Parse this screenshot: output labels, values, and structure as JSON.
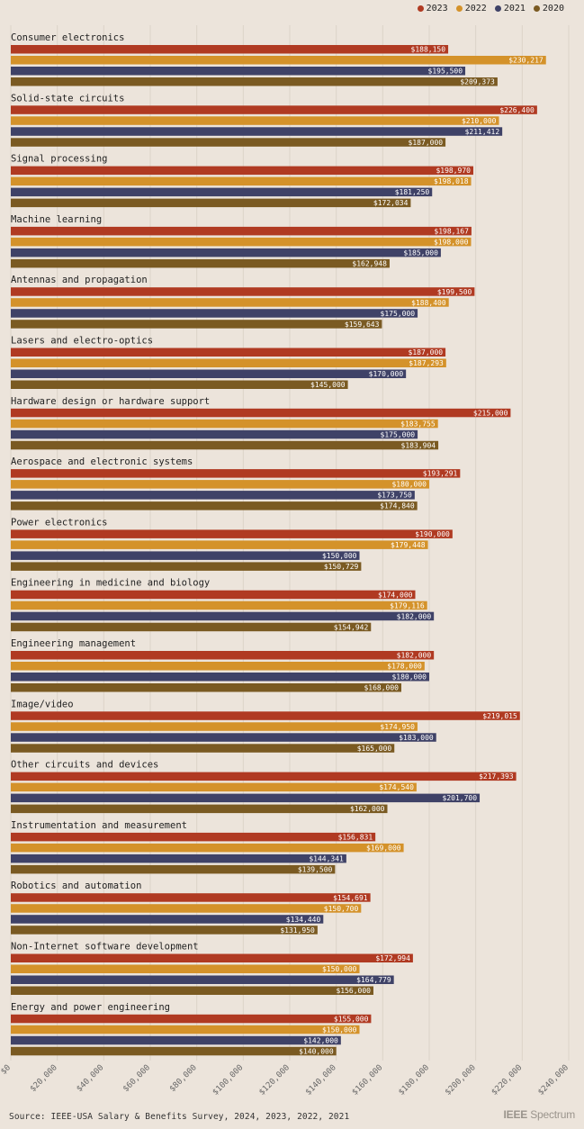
{
  "legend": [
    {
      "label": "2023",
      "color": "#b03a22"
    },
    {
      "label": "2022",
      "color": "#d4922a"
    },
    {
      "label": "2021",
      "color": "#3f4267"
    },
    {
      "label": "2020",
      "color": "#7a5a22"
    }
  ],
  "source": "Source: IEEE-USA Salary & Benefits Survey, 2024, 2023, 2022, 2021",
  "logo": {
    "prefix": "IEEE",
    "suffix": "Spectrum"
  },
  "chart_data": {
    "type": "bar",
    "orientation": "horizontal",
    "title": "",
    "xlabel": "",
    "ylabel": "",
    "xlim": [
      0,
      240000
    ],
    "grid": true,
    "legend_position": "top-right",
    "x_ticks": [
      "$0",
      "$20,000",
      "$40,000",
      "$60,000",
      "$80,000",
      "$100,000",
      "$120,000",
      "$140,000",
      "$160,000",
      "$180,000",
      "$200,000",
      "$220,000",
      "$240,000"
    ],
    "series_names": [
      "2023",
      "2022",
      "2021",
      "2020"
    ],
    "categories": [
      {
        "name": "Consumer electronics",
        "values": [
          188150,
          230217,
          195500,
          209373
        ],
        "labels": [
          "$188,150",
          "$230,217",
          "$195,500",
          "$209,373"
        ]
      },
      {
        "name": "Solid-state circuits",
        "values": [
          226400,
          210000,
          211412,
          187000
        ],
        "labels": [
          "$226,400",
          "$210,000",
          "$211,412",
          "$187,000"
        ]
      },
      {
        "name": "Signal processing",
        "values": [
          198970,
          198018,
          181250,
          172034
        ],
        "labels": [
          "$198,970",
          "$198,018",
          "$181,250",
          "$172,034"
        ]
      },
      {
        "name": "Machine learning",
        "values": [
          198167,
          198000,
          185000,
          162948
        ],
        "labels": [
          "$198,167",
          "$198,000",
          "$185,000",
          "$162,948"
        ]
      },
      {
        "name": "Antennas and propagation",
        "values": [
          199500,
          188400,
          175000,
          159643
        ],
        "labels": [
          "$199,500",
          "$188,400",
          "$175,000",
          "$159,643"
        ]
      },
      {
        "name": "Lasers and electro-optics",
        "values": [
          187000,
          187293,
          170000,
          145000
        ],
        "labels": [
          "$187,000",
          "$187,293",
          "$170,000",
          "$145,000"
        ]
      },
      {
        "name": "Hardware design or hardware support",
        "values": [
          215000,
          183755,
          175000,
          183904
        ],
        "labels": [
          "$215,000",
          "$183,755",
          "$175,000",
          "$183,904"
        ]
      },
      {
        "name": "Aerospace and electronic systems",
        "values": [
          193291,
          180000,
          173750,
          174840
        ],
        "labels": [
          "$193,291",
          "$180,000",
          "$173,750",
          "$174,840"
        ]
      },
      {
        "name": "Power electronics",
        "values": [
          190000,
          179448,
          150000,
          150729
        ],
        "labels": [
          "$190,000",
          "$179,448",
          "$150,000",
          "$150,729"
        ]
      },
      {
        "name": "Engineering in medicine and biology",
        "values": [
          174000,
          179116,
          182000,
          154942
        ],
        "labels": [
          "$174,000",
          "$179,116",
          "$182,000",
          "$154,942"
        ]
      },
      {
        "name": "Engineering management",
        "values": [
          182000,
          178000,
          180000,
          168000
        ],
        "labels": [
          "$182,000",
          "$178,000",
          "$180,000",
          "$168,000"
        ]
      },
      {
        "name": "Image/video",
        "values": [
          219015,
          174950,
          183000,
          165000
        ],
        "labels": [
          "$219,015",
          "$174,950",
          "$183,000",
          "$165,000"
        ]
      },
      {
        "name": "Other circuits and devices",
        "values": [
          217393,
          174540,
          201700,
          162000
        ],
        "labels": [
          "$217,393",
          "$174,540",
          "$201,700",
          "$162,000"
        ]
      },
      {
        "name": "Instrumentation and measurement",
        "values": [
          156831,
          169000,
          144341,
          139500
        ],
        "labels": [
          "$156,831",
          "$169,000",
          "$144,341",
          "$139,500"
        ]
      },
      {
        "name": "Robotics and automation",
        "values": [
          154691,
          150700,
          134440,
          131950
        ],
        "labels": [
          "$154,691",
          "$150,700",
          "$134,440",
          "$131,950"
        ]
      },
      {
        "name": "Non-Internet software development",
        "values": [
          172994,
          150000,
          164779,
          156000
        ],
        "labels": [
          "$172,994",
          "$150,000",
          "$164,779",
          "$156,000"
        ]
      },
      {
        "name": "Energy and power engineering",
        "values": [
          155000,
          150000,
          142000,
          140000
        ],
        "labels": [
          "$155,000",
          "$150,000",
          "$142,000",
          "$140,000"
        ]
      }
    ]
  }
}
